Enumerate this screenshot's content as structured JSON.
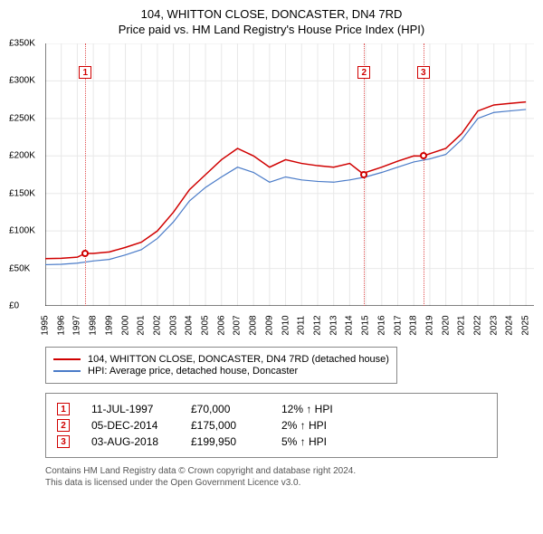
{
  "title": "104, WHITTON CLOSE, DONCASTER, DN4 7RD",
  "subtitle": "Price paid vs. HM Land Registry's House Price Index (HPI)",
  "chart": {
    "type": "line",
    "xlim": [
      1995,
      2025.5
    ],
    "ylim": [
      0,
      350000
    ],
    "ytick_step": 50000,
    "yticks": [
      "£0",
      "£50K",
      "£100K",
      "£150K",
      "£200K",
      "£250K",
      "£300K",
      "£350K"
    ],
    "xticks": [
      1995,
      1996,
      1997,
      1998,
      1999,
      2000,
      2001,
      2002,
      2003,
      2004,
      2005,
      2006,
      2007,
      2008,
      2009,
      2010,
      2011,
      2012,
      2013,
      2014,
      2015,
      2016,
      2017,
      2018,
      2019,
      2020,
      2021,
      2022,
      2023,
      2024,
      2025
    ],
    "grid_color": "#e8e8e8",
    "background_color": "#ffffff",
    "axis_color": "#000000",
    "series": [
      {
        "name": "property",
        "label": "104, WHITTON CLOSE, DONCASTER, DN4 7RD (detached house)",
        "color": "#d00000",
        "width": 1.5,
        "data": [
          [
            1995,
            63000
          ],
          [
            1996,
            63500
          ],
          [
            1997,
            65000
          ],
          [
            1997.5,
            70000
          ],
          [
            1998,
            70000
          ],
          [
            1999,
            72000
          ],
          [
            2000,
            78000
          ],
          [
            2001,
            85000
          ],
          [
            2002,
            100000
          ],
          [
            2003,
            125000
          ],
          [
            2004,
            155000
          ],
          [
            2005,
            175000
          ],
          [
            2006,
            195000
          ],
          [
            2007,
            210000
          ],
          [
            2008,
            200000
          ],
          [
            2009,
            185000
          ],
          [
            2010,
            195000
          ],
          [
            2011,
            190000
          ],
          [
            2012,
            187000
          ],
          [
            2013,
            185000
          ],
          [
            2014,
            190000
          ],
          [
            2014.9,
            175000
          ],
          [
            2015,
            178000
          ],
          [
            2016,
            185000
          ],
          [
            2017,
            193000
          ],
          [
            2018,
            200000
          ],
          [
            2018.6,
            199950
          ],
          [
            2019,
            203000
          ],
          [
            2020,
            210000
          ],
          [
            2021,
            230000
          ],
          [
            2022,
            260000
          ],
          [
            2023,
            268000
          ],
          [
            2024,
            270000
          ],
          [
            2025,
            272000
          ]
        ]
      },
      {
        "name": "hpi",
        "label": "HPI: Average price, detached house, Doncaster",
        "color": "#4a7bc8",
        "width": 1.2,
        "data": [
          [
            1995,
            55000
          ],
          [
            1996,
            55500
          ],
          [
            1997,
            57000
          ],
          [
            1998,
            60000
          ],
          [
            1999,
            62000
          ],
          [
            2000,
            68000
          ],
          [
            2001,
            75000
          ],
          [
            2002,
            90000
          ],
          [
            2003,
            112000
          ],
          [
            2004,
            140000
          ],
          [
            2005,
            158000
          ],
          [
            2006,
            172000
          ],
          [
            2007,
            185000
          ],
          [
            2008,
            178000
          ],
          [
            2009,
            165000
          ],
          [
            2010,
            172000
          ],
          [
            2011,
            168000
          ],
          [
            2012,
            166000
          ],
          [
            2013,
            165000
          ],
          [
            2014,
            168000
          ],
          [
            2015,
            172000
          ],
          [
            2016,
            178000
          ],
          [
            2017,
            185000
          ],
          [
            2018,
            192000
          ],
          [
            2019,
            196000
          ],
          [
            2020,
            202000
          ],
          [
            2021,
            222000
          ],
          [
            2022,
            250000
          ],
          [
            2023,
            258000
          ],
          [
            2024,
            260000
          ],
          [
            2025,
            262000
          ]
        ]
      }
    ],
    "markers": [
      {
        "n": "1",
        "x": 1997.5,
        "y": 70000
      },
      {
        "n": "2",
        "x": 2014.9,
        "y": 175000
      },
      {
        "n": "3",
        "x": 2018.6,
        "y": 199950
      }
    ]
  },
  "legend": {
    "items": [
      {
        "color": "#d00000",
        "label": "104, WHITTON CLOSE, DONCASTER, DN4 7RD (detached house)"
      },
      {
        "color": "#4a7bc8",
        "label": "HPI: Average price, detached house, Doncaster"
      }
    ]
  },
  "sales": [
    {
      "n": "1",
      "date": "11-JUL-1997",
      "price": "£70,000",
      "delta": "12% ↑ HPI"
    },
    {
      "n": "2",
      "date": "05-DEC-2014",
      "price": "£175,000",
      "delta": "2% ↑ HPI"
    },
    {
      "n": "3",
      "date": "03-AUG-2018",
      "price": "£199,950",
      "delta": "5% ↑ HPI"
    }
  ],
  "footer": {
    "line1": "Contains HM Land Registry data © Crown copyright and database right 2024.",
    "line2": "This data is licensed under the Open Government Licence v3.0."
  }
}
